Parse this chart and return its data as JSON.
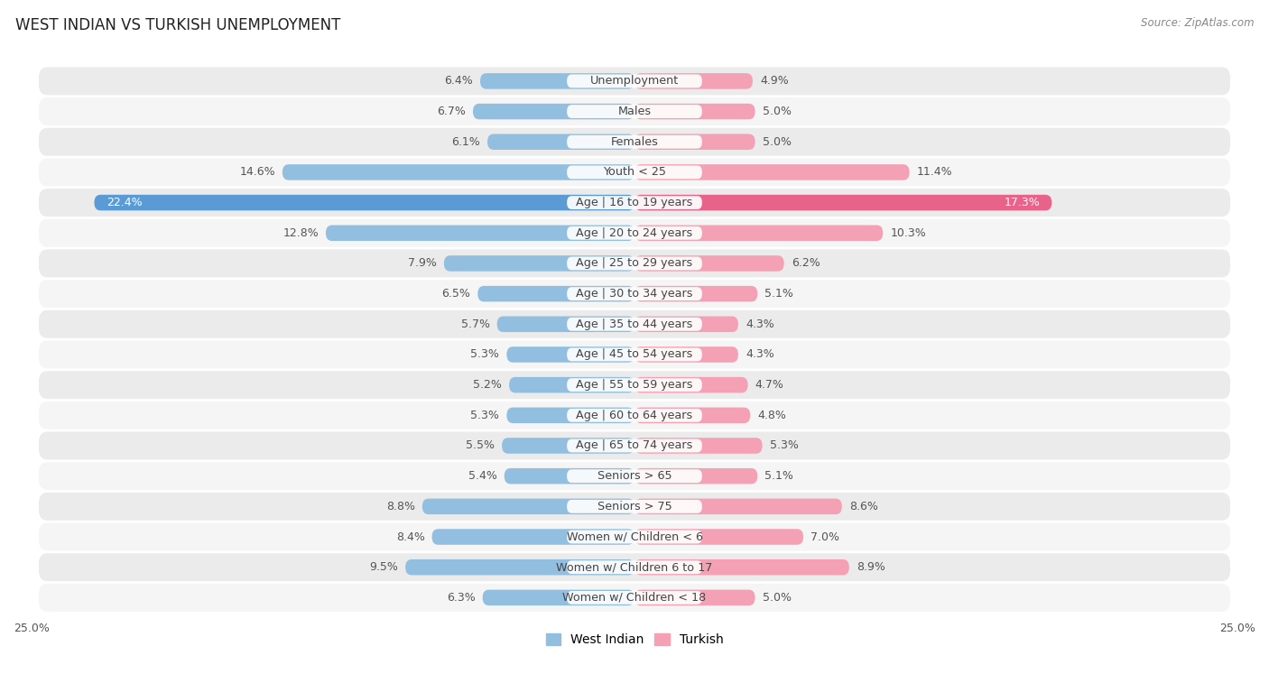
{
  "title": "WEST INDIAN VS TURKISH UNEMPLOYMENT",
  "source": "Source: ZipAtlas.com",
  "categories": [
    "Unemployment",
    "Males",
    "Females",
    "Youth < 25",
    "Age | 16 to 19 years",
    "Age | 20 to 24 years",
    "Age | 25 to 29 years",
    "Age | 30 to 34 years",
    "Age | 35 to 44 years",
    "Age | 45 to 54 years",
    "Age | 55 to 59 years",
    "Age | 60 to 64 years",
    "Age | 65 to 74 years",
    "Seniors > 65",
    "Seniors > 75",
    "Women w/ Children < 6",
    "Women w/ Children 6 to 17",
    "Women w/ Children < 18"
  ],
  "west_indian": [
    6.4,
    6.7,
    6.1,
    14.6,
    22.4,
    12.8,
    7.9,
    6.5,
    5.7,
    5.3,
    5.2,
    5.3,
    5.5,
    5.4,
    8.8,
    8.4,
    9.5,
    6.3
  ],
  "turkish": [
    4.9,
    5.0,
    5.0,
    11.4,
    17.3,
    10.3,
    6.2,
    5.1,
    4.3,
    4.3,
    4.7,
    4.8,
    5.3,
    5.1,
    8.6,
    7.0,
    8.9,
    5.0
  ],
  "west_indian_color": "#92bfdf",
  "turkish_color": "#f4a0b5",
  "highlight_wi_color": "#5b9bd5",
  "highlight_tu_color": "#e8638a",
  "bar_height": 0.52,
  "xlim": 25.0,
  "row_colors": [
    "#ebebeb",
    "#f5f5f5"
  ],
  "label_fontsize": 9.2,
  "value_fontsize": 9.0,
  "title_fontsize": 12,
  "source_fontsize": 8.5,
  "axis_label_fontsize": 9,
  "legend_labels": [
    "West Indian",
    "Turkish"
  ],
  "legend_colors": [
    "#92bfdf",
    "#f4a0b5"
  ],
  "inside_label_threshold_wi": 18.0,
  "inside_label_threshold_tu": 14.0
}
